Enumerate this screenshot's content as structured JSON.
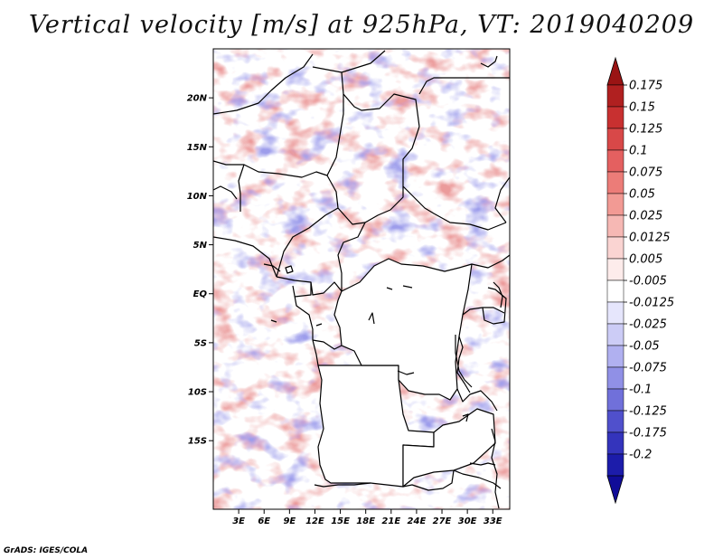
{
  "title": "Vertical velocity [m/s] at 925hPa, VT: 2019040209",
  "credit": "GrADS: IGES/COLA",
  "map": {
    "lon_range": [
      0,
      35
    ],
    "lat_range": [
      -22,
      25
    ],
    "lon_ticks": [
      {
        "value": 3,
        "label": "3E"
      },
      {
        "value": 6,
        "label": "6E"
      },
      {
        "value": 9,
        "label": "9E"
      },
      {
        "value": 12,
        "label": "12E"
      },
      {
        "value": 15,
        "label": "15E"
      },
      {
        "value": 18,
        "label": "18E"
      },
      {
        "value": 21,
        "label": "21E"
      },
      {
        "value": 24,
        "label": "24E"
      },
      {
        "value": 27,
        "label": "27E"
      },
      {
        "value": 30,
        "label": "30E"
      },
      {
        "value": 33,
        "label": "33E"
      }
    ],
    "lat_ticks": [
      {
        "value": 20,
        "label": "20N"
      },
      {
        "value": 15,
        "label": "15N"
      },
      {
        "value": 10,
        "label": "10N"
      },
      {
        "value": 5,
        "label": "5N"
      },
      {
        "value": 0,
        "label": "EQ"
      },
      {
        "value": -5,
        "label": "5S"
      },
      {
        "value": -10,
        "label": "10S"
      },
      {
        "value": -15,
        "label": "15S"
      }
    ]
  },
  "colorbar": {
    "levels": [
      {
        "label": "0.175",
        "color": "#b02020"
      },
      {
        "label": "0.15",
        "color": "#c83030"
      },
      {
        "label": "0.125",
        "color": "#d84848"
      },
      {
        "label": "0.1",
        "color": "#e46060"
      },
      {
        "label": "0.075",
        "color": "#ec7c78"
      },
      {
        "label": "0.05",
        "color": "#f29a94"
      },
      {
        "label": "0.025",
        "color": "#f6b8b4"
      },
      {
        "label": "0.0125",
        "color": "#fad4d2"
      },
      {
        "label": "0.005",
        "color": "#fdeceb"
      },
      {
        "label": "-0.005",
        "color": "#ffffff"
      },
      {
        "label": "-0.0125",
        "color": "#e6e6fc"
      },
      {
        "label": "-0.025",
        "color": "#ccccf6"
      },
      {
        "label": "-0.05",
        "color": "#b0b0f0"
      },
      {
        "label": "-0.075",
        "color": "#9090e6"
      },
      {
        "label": "-0.1",
        "color": "#7070da"
      },
      {
        "label": "-0.125",
        "color": "#5050cc"
      },
      {
        "label": "-0.175",
        "color": "#3434bc"
      },
      {
        "label": "-0.2",
        "color": "#1c1caa"
      }
    ],
    "top_color": "#9a1414",
    "bottom_color": "#100c98"
  }
}
